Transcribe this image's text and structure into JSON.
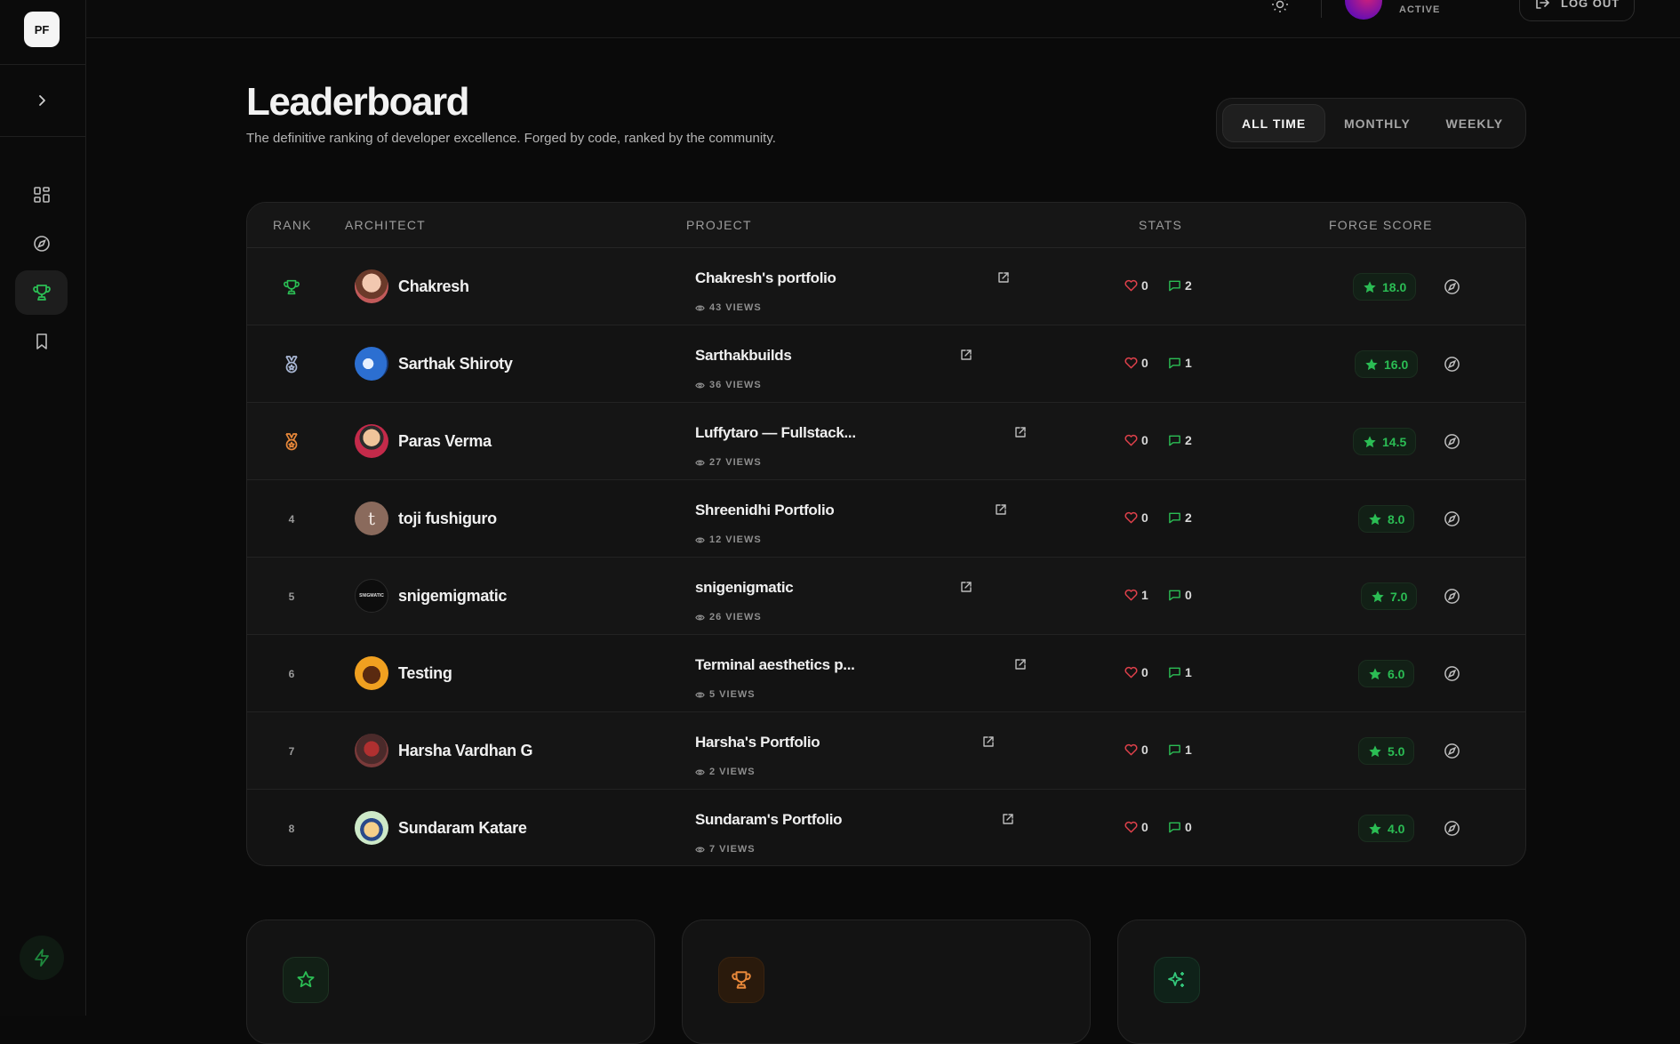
{
  "app": {
    "logo": "PF"
  },
  "topbar": {
    "status": "ACTIVE",
    "logout_label": "LOG OUT"
  },
  "header": {
    "title": "Leaderboard",
    "subtitle": "The definitive ranking of developer excellence. Forged by code, ranked by the community."
  },
  "filters": [
    {
      "label": "ALL TIME",
      "active": true
    },
    {
      "label": "MONTHLY",
      "active": false
    },
    {
      "label": "WEEKLY",
      "active": false
    }
  ],
  "table": {
    "columns": [
      "RANK",
      "ARCHITECT",
      "PROJECT",
      "STATS",
      "FORGE SCORE"
    ],
    "rows": [
      {
        "rank": "",
        "medal": "gold-trophy",
        "name": "Chakresh",
        "project": "Chakresh's portfolio",
        "views": "43 VIEWS",
        "likes": "0",
        "comments": "2",
        "score": "18.0"
      },
      {
        "rank": "",
        "medal": "silver-medal",
        "name": "Sarthak Shiroty",
        "project": "Sarthakbuilds",
        "views": "36 VIEWS",
        "likes": "0",
        "comments": "1",
        "score": "16.0"
      },
      {
        "rank": "",
        "medal": "bronze-medal",
        "name": "Paras Verma",
        "project": "Luffytaro — Fullstack...",
        "views": "27 VIEWS",
        "likes": "0",
        "comments": "2",
        "score": "14.5"
      },
      {
        "rank": "4",
        "medal": "",
        "name": "toji fushiguro",
        "avatar_letter": "t",
        "project": "Shreenidhi Portfolio",
        "views": "12 VIEWS",
        "likes": "0",
        "comments": "2",
        "score": "8.0"
      },
      {
        "rank": "5",
        "medal": "",
        "name": "snigemigmatic",
        "avatar_text": "SNIGMATIC",
        "project": "snigenigmatic",
        "views": "26 VIEWS",
        "likes": "1",
        "comments": "0",
        "score": "7.0"
      },
      {
        "rank": "6",
        "medal": "",
        "name": "Testing",
        "project": "Terminal aesthetics p...",
        "views": "5 VIEWS",
        "likes": "0",
        "comments": "1",
        "score": "6.0"
      },
      {
        "rank": "7",
        "medal": "",
        "name": "Harsha Vardhan G",
        "project": "Harsha's Portfolio",
        "views": "2 VIEWS",
        "likes": "0",
        "comments": "1",
        "score": "5.0"
      },
      {
        "rank": "8",
        "medal": "",
        "name": "Sundaram Katare",
        "project": "Sundaram's Portfolio",
        "views": "7 VIEWS",
        "likes": "0",
        "comments": "0",
        "score": "4.0"
      }
    ]
  },
  "colors": {
    "accent_green": "#2bbd54",
    "heart_red": "#e0414b",
    "trophy_green": "#2bbd54",
    "silver": "#a9b7d4",
    "bronze": "#e8883a"
  },
  "cards": [
    {
      "icon": "star-icon"
    },
    {
      "icon": "trophy-icon"
    },
    {
      "icon": "sparkle-icon"
    }
  ]
}
